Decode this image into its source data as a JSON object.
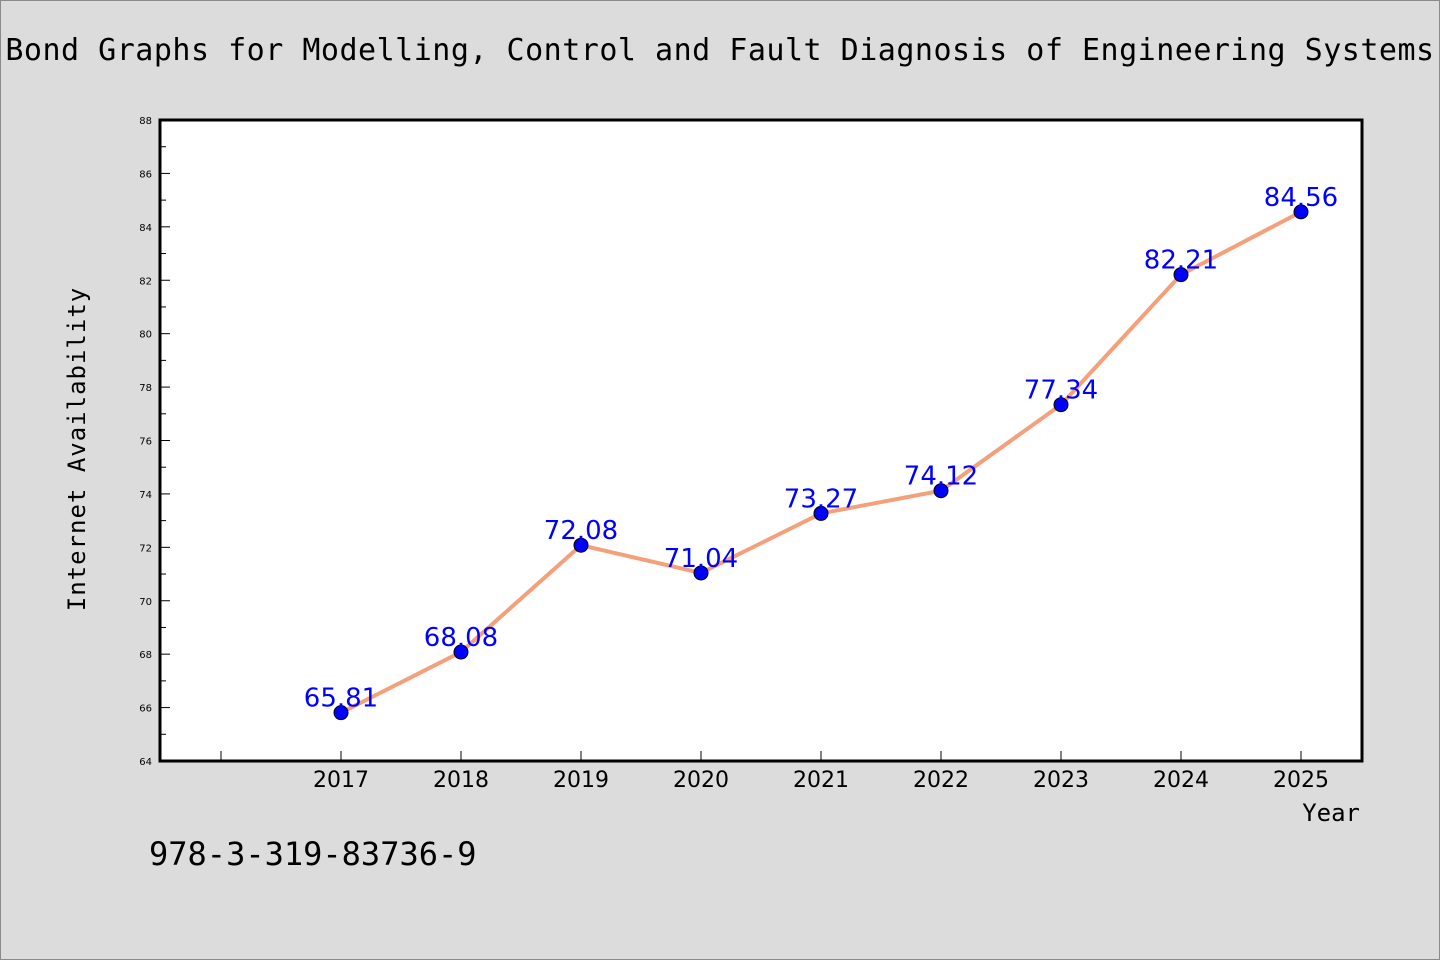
{
  "chart_data": {
    "type": "line",
    "title": "Bond Graphs for Modelling, Control and Fault Diagnosis of Engineering Systems",
    "xlabel": "Year",
    "ylabel": "Internet Availability",
    "categories": [
      "2017",
      "2018",
      "2019",
      "2020",
      "2021",
      "2022",
      "2023",
      "2024",
      "2025"
    ],
    "series": [
      {
        "values": [
          65.81,
          68.08,
          72.08,
          71.04,
          73.27,
          74.12,
          77.34,
          82.21,
          84.56
        ],
        "data_labels": [
          "65.81",
          "68.08",
          "72.08",
          "71.04",
          "73.27",
          "74.12",
          "77.34",
          "82.21",
          "84.56"
        ]
      }
    ],
    "ylim": [
      64,
      88
    ],
    "yticks": [
      "64",
      "66",
      "68",
      "70",
      "72",
      "74",
      "76",
      "78",
      "80",
      "82",
      "84",
      "86",
      "88"
    ],
    "grid": false,
    "line_color": "#f4a07a",
    "marker_color": "#0000ff",
    "label_color": "#0000ff"
  },
  "footer": {
    "isbn": "978-3-319-83736-9"
  }
}
